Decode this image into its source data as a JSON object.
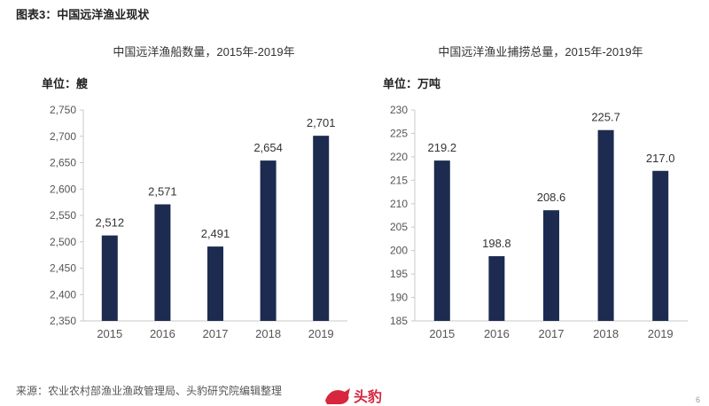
{
  "figure_title": "图表3：中国远洋渔业现状",
  "left": {
    "title": "中国远洋渔船数量，2015年-2019年",
    "unit": "单位：艘"
  },
  "right": {
    "title": "中国远洋渔业捕捞总量，2015年-2019年",
    "unit": "单位：万吨"
  },
  "source": "来源：农业农村部渔业渔政管理局、头豹研究院编辑整理",
  "logo_text": "头豹",
  "page_number": "6",
  "colors": {
    "bar": "#1c2b4f",
    "axis": "#c8c8c8",
    "text": "#555555"
  },
  "chart_data": [
    {
      "type": "bar",
      "categories": [
        "2015",
        "2016",
        "2017",
        "2018",
        "2019"
      ],
      "values": [
        2512,
        2571,
        2491,
        2654,
        2701
      ],
      "labels": [
        "2,512",
        "2,571",
        "2,491",
        "2,654",
        "2,701"
      ],
      "ylim": [
        2350,
        2750
      ],
      "yticks": [
        2350,
        2400,
        2450,
        2500,
        2550,
        2600,
        2650,
        2700,
        2750
      ],
      "ytick_labels": [
        "2,350",
        "2,400",
        "2,450",
        "2,500",
        "2,550",
        "2,600",
        "2,650",
        "2,700",
        "2,750"
      ],
      "grid": false
    },
    {
      "type": "bar",
      "categories": [
        "2015",
        "2016",
        "2017",
        "2018",
        "2019"
      ],
      "values": [
        219.2,
        198.8,
        208.6,
        225.7,
        217.0
      ],
      "labels": [
        "219.2",
        "198.8",
        "208.6",
        "225.7",
        "217.0"
      ],
      "ylim": [
        185,
        230
      ],
      "yticks": [
        185,
        190,
        195,
        200,
        205,
        210,
        215,
        220,
        225,
        230
      ],
      "ytick_labels": [
        "185",
        "190",
        "195",
        "200",
        "205",
        "210",
        "215",
        "220",
        "225",
        "230"
      ],
      "grid": false
    }
  ]
}
